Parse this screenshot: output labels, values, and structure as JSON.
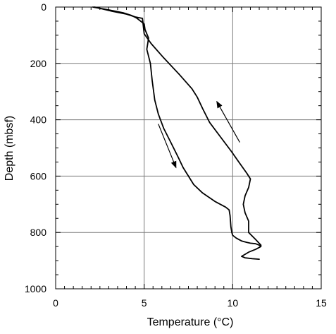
{
  "chart_data": {
    "type": "line",
    "xlabel": "Temperature (°C)",
    "ylabel": "Depth (mbsf)",
    "xlim": [
      0,
      15
    ],
    "ylim": [
      0,
      1000
    ],
    "y_inverted": true,
    "x_ticks": [
      0,
      5,
      10,
      15
    ],
    "y_ticks": [
      0,
      200,
      400,
      600,
      800,
      1000
    ],
    "grid": true,
    "series": [
      {
        "x": [
          2.1,
          3.0,
          3.8,
          4.3,
          4.6,
          5.0,
          5.05,
          5.15,
          5.25,
          5.2,
          5.15,
          5.35,
          5.45,
          5.6,
          5.8,
          6.1,
          6.5,
          6.9,
          7.2,
          7.5,
          7.8,
          8.3,
          9.0,
          9.6,
          9.8,
          9.85,
          9.9,
          9.95,
          10.0,
          10.2,
          10.5,
          10.8,
          11.0,
          11.3,
          11.5,
          11.6,
          11.3,
          10.9,
          10.5,
          10.7,
          11.1,
          11.5
        ],
        "y": [
          0,
          10,
          20,
          30,
          40,
          60,
          80,
          95,
          110,
          130,
          150,
          200,
          260,
          330,
          380,
          430,
          480,
          530,
          570,
          600,
          630,
          660,
          690,
          710,
          720,
          740,
          780,
          800,
          810,
          820,
          830,
          835,
          838,
          840,
          845,
          850,
          860,
          870,
          885,
          890,
          893,
          895
        ]
      },
      {
        "x": [
          2.2,
          3.2,
          4.0,
          4.5,
          4.9,
          5.0,
          5.4,
          6.1,
          7.0,
          7.7,
          8.0,
          8.3,
          8.7,
          9.3,
          9.9,
          10.4,
          10.8,
          11.0,
          10.9,
          10.7,
          10.6,
          10.7,
          10.9,
          10.9,
          10.9,
          11.3,
          11.6
        ],
        "y": [
          0,
          15,
          25,
          35,
          40,
          95,
          130,
          180,
          240,
          290,
          320,
          360,
          410,
          460,
          510,
          555,
          590,
          610,
          640,
          670,
          700,
          730,
          760,
          780,
          800,
          825,
          845
        ]
      }
    ],
    "annotations": [
      {
        "type": "arrow",
        "from": [
          5.8,
          415
        ],
        "to": [
          6.8,
          570
        ]
      },
      {
        "type": "arrow",
        "from": [
          10.4,
          480
        ],
        "to": [
          9.1,
          335
        ]
      }
    ]
  }
}
